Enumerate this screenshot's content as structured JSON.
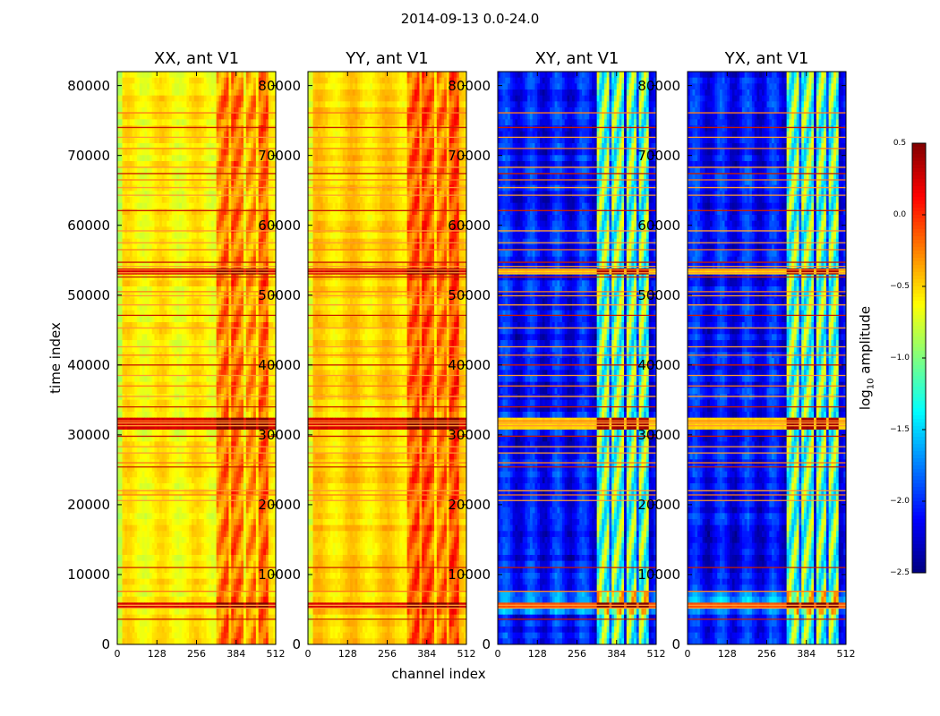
{
  "figure": {
    "suptitle": "2014-09-13 0.0-24.0",
    "ylabel": "time index",
    "xlabel": "channel index",
    "colorbar_label_prefix": "log",
    "colorbar_label_sub": "10",
    "colorbar_label_suffix": " amplitude"
  },
  "chart_data": {
    "type": "heatmap",
    "colormap": "jet",
    "panels": [
      {
        "title": "XX, ant V1",
        "kind": "auto"
      },
      {
        "title": "YY, ant V1",
        "kind": "auto"
      },
      {
        "title": "XY, ant V1",
        "kind": "cross"
      },
      {
        "title": "YX, ant V1",
        "kind": "cross"
      }
    ],
    "xlim": [
      0,
      512
    ],
    "ylim": [
      0,
      82000
    ],
    "xticks": [
      0,
      128,
      256,
      384,
      512
    ],
    "yticks": [
      0,
      10000,
      20000,
      30000,
      40000,
      50000,
      60000,
      70000,
      80000
    ],
    "colorbar": {
      "range": [
        -2.5,
        0.5
      ],
      "ticks": [
        0.5,
        0.0,
        -0.5,
        -1.0,
        -1.5,
        -2.0,
        -2.5
      ],
      "tick_labels": [
        "0.5",
        "0.0",
        "−0.5",
        "−1.0",
        "−1.5",
        "−2.0",
        "−2.5"
      ]
    },
    "flagged_time_rows": [
      3600,
      5200,
      5600,
      7600,
      11000,
      20600,
      21400,
      22000,
      25400,
      26000,
      27400,
      28300,
      29800,
      31300,
      31700,
      32000,
      34000,
      35500,
      37000,
      38500,
      40000,
      41400,
      42600,
      45300,
      47100,
      48600,
      49900,
      50500,
      52600,
      53200,
      53600,
      54100,
      54700,
      56500,
      57500,
      59200,
      62100,
      64300,
      65400,
      66500,
      67400,
      68300,
      71000,
      72600,
      74000,
      76100
    ],
    "strong_band_rows": [
      {
        "from": 52600,
        "to": 54100
      },
      {
        "from": 31000,
        "to": 32200
      },
      {
        "from": 5200,
        "to": 5700
      }
    ],
    "high_channel_blocks": [
      {
        "from": 320,
        "to": 360
      },
      {
        "from": 365,
        "to": 410
      },
      {
        "from": 415,
        "to": 450
      },
      {
        "from": 455,
        "to": 485
      }
    ]
  }
}
